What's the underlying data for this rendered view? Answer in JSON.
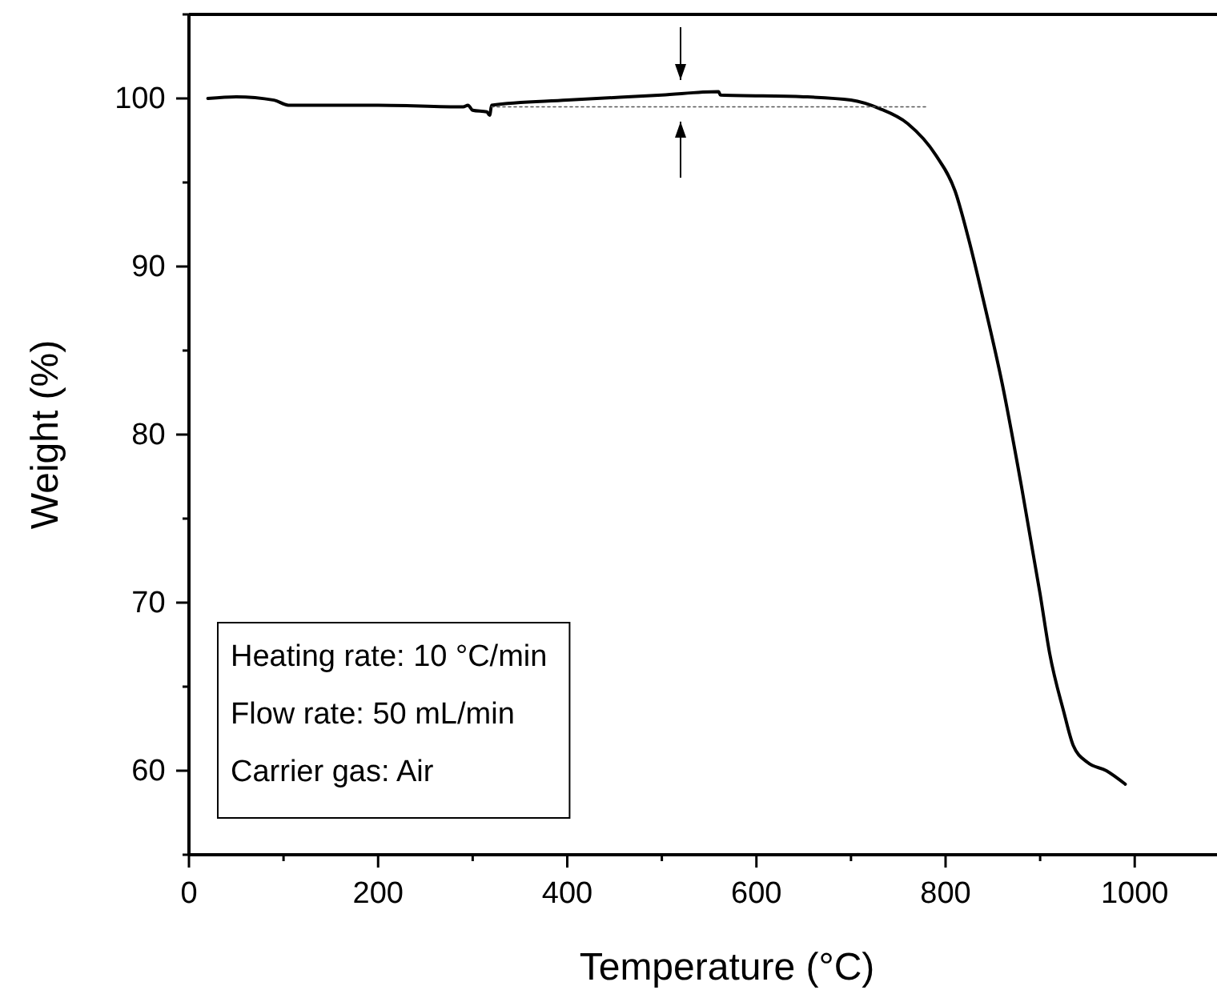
{
  "chart_data": {
    "type": "line",
    "xlabel": "Temperature (°C)",
    "ylabel": "Weight (%)",
    "xlim": [
      0,
      1087
    ],
    "ylim": [
      55,
      105
    ],
    "xticks": [
      0,
      {
        "value": 100,
        "label": null
      },
      200,
      {
        "value": 300,
        "label": null
      },
      400,
      {
        "value": 500,
        "label": null
      },
      600,
      {
        "value": 700,
        "label": null
      },
      800,
      {
        "value": 900,
        "label": null
      },
      1000
    ],
    "yticks": [
      {
        "value": 55,
        "label": null
      },
      60,
      {
        "value": 65,
        "label": null
      },
      70,
      {
        "value": 75,
        "label": null
      },
      80,
      {
        "value": 85,
        "label": null
      },
      90,
      {
        "value": 95,
        "label": null
      },
      100,
      {
        "value": 105,
        "label": null
      }
    ],
    "grid": false,
    "series": [
      {
        "color": "#000000",
        "line_style": "solid",
        "x": [
          20,
          50,
          90,
          105,
          200,
          290,
          295,
          300,
          315,
          318,
          320,
          400,
          500,
          560,
          562,
          650,
          700,
          730,
          760,
          790,
          810,
          825,
          840,
          860,
          880,
          900,
          910,
          925,
          935,
          950,
          970,
          990
        ],
        "values": [
          100.0,
          100.1,
          99.9,
          99.6,
          99.6,
          99.5,
          99.6,
          99.3,
          99.2,
          99.0,
          99.6,
          99.9,
          100.2,
          100.4,
          100.2,
          100.1,
          99.9,
          99.4,
          98.5,
          96.6,
          94.5,
          91.5,
          88,
          83,
          77,
          70.5,
          67,
          63.5,
          61.5,
          60.5,
          60,
          59.2
        ]
      },
      {
        "color": "#555555",
        "line_style": "dotted",
        "x": [
          320,
          780
        ],
        "values": [
          99.5,
          99.5
        ]
      }
    ],
    "annotations": [
      "Heating rate: 10 °C/min",
      "Flow rate: 50 mL/min",
      "Carrier gas: Air"
    ]
  }
}
